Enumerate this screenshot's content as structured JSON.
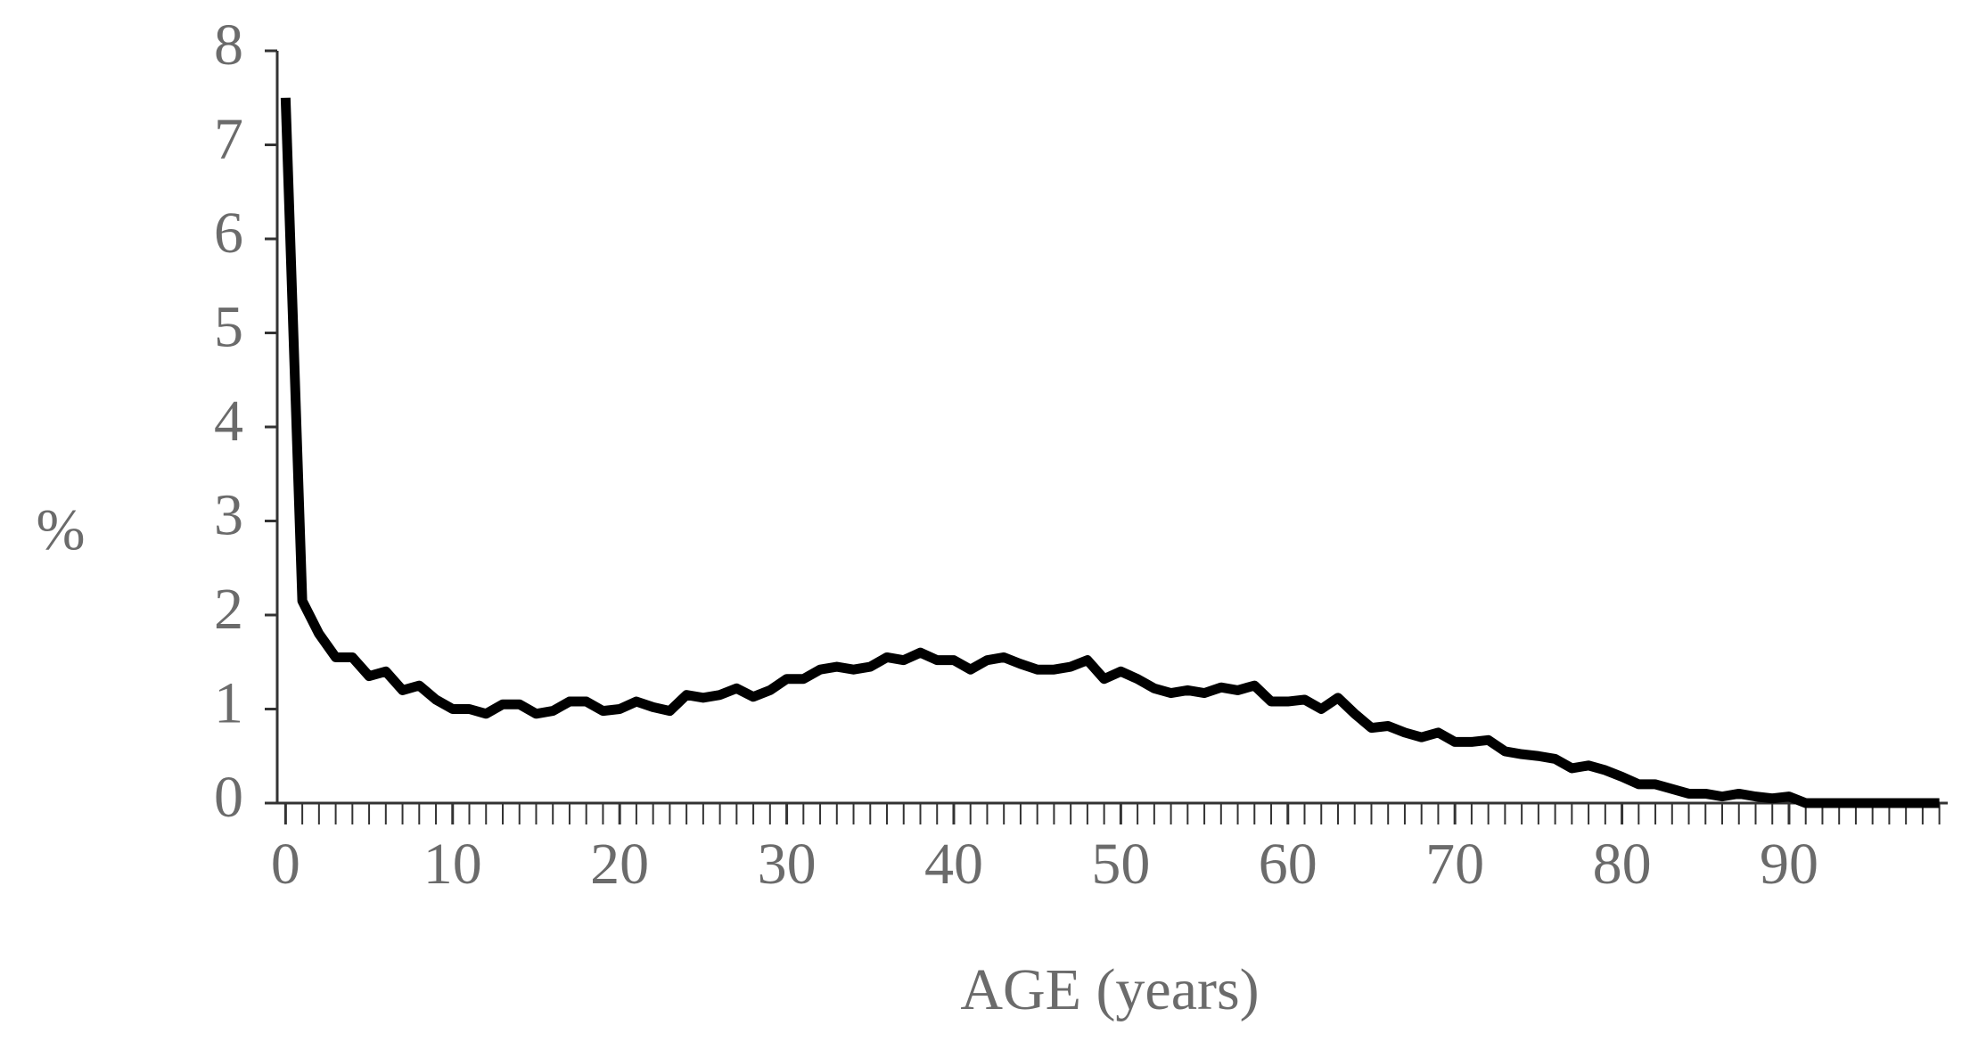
{
  "chart_data": {
    "type": "line",
    "y_label": "%",
    "x_label": "AGE (years)",
    "x": [
      0,
      1,
      2,
      3,
      4,
      5,
      6,
      7,
      8,
      9,
      10,
      11,
      12,
      13,
      14,
      15,
      16,
      17,
      18,
      19,
      20,
      21,
      22,
      23,
      24,
      25,
      26,
      27,
      28,
      29,
      30,
      31,
      32,
      33,
      34,
      35,
      36,
      37,
      38,
      39,
      40,
      41,
      42,
      43,
      44,
      45,
      46,
      47,
      48,
      49,
      50,
      51,
      52,
      53,
      54,
      55,
      56,
      57,
      58,
      59,
      60,
      61,
      62,
      63,
      64,
      65,
      66,
      67,
      68,
      69,
      70,
      71,
      72,
      73,
      74,
      75,
      76,
      77,
      78,
      79,
      80,
      81,
      82,
      83,
      84,
      85,
      86,
      87,
      88,
      89,
      90,
      91,
      92,
      93,
      94,
      95,
      96,
      97,
      98,
      99
    ],
    "series": [
      {
        "color": "#000000",
        "values": [
          7.5,
          2.15,
          1.8,
          1.55,
          1.55,
          1.35,
          1.4,
          1.2,
          1.25,
          1.1,
          1.0,
          1.0,
          0.95,
          1.05,
          1.05,
          0.95,
          0.98,
          1.08,
          1.08,
          0.98,
          1.0,
          1.08,
          1.02,
          0.98,
          1.15,
          1.12,
          1.15,
          1.22,
          1.13,
          1.2,
          1.32,
          1.32,
          1.42,
          1.45,
          1.42,
          1.45,
          1.55,
          1.52,
          1.6,
          1.52,
          1.52,
          1.42,
          1.52,
          1.55,
          1.48,
          1.42,
          1.42,
          1.45,
          1.52,
          1.32,
          1.4,
          1.32,
          1.22,
          1.17,
          1.2,
          1.17,
          1.23,
          1.2,
          1.25,
          1.08,
          1.08,
          1.1,
          1.0,
          1.12,
          0.95,
          0.8,
          0.82,
          0.75,
          0.7,
          0.75,
          0.65,
          0.65,
          0.67,
          0.55,
          0.52,
          0.5,
          0.47,
          0.37,
          0.4,
          0.35,
          0.28,
          0.2,
          0.2,
          0.15,
          0.1,
          0.1,
          0.07,
          0.1,
          0.07,
          0.05,
          0.07,
          0.0,
          0.0,
          0.0,
          0.0,
          0.0,
          0.0,
          0.0,
          0.0,
          0.0
        ]
      }
    ],
    "xlim": [
      -0.5,
      99.5
    ],
    "xticks": [
      0,
      10,
      20,
      30,
      40,
      50,
      60,
      70,
      80,
      90
    ],
    "ylim": [
      0,
      8
    ],
    "yticks": [
      0,
      1,
      2,
      3,
      4,
      5,
      6,
      7,
      8
    ]
  }
}
